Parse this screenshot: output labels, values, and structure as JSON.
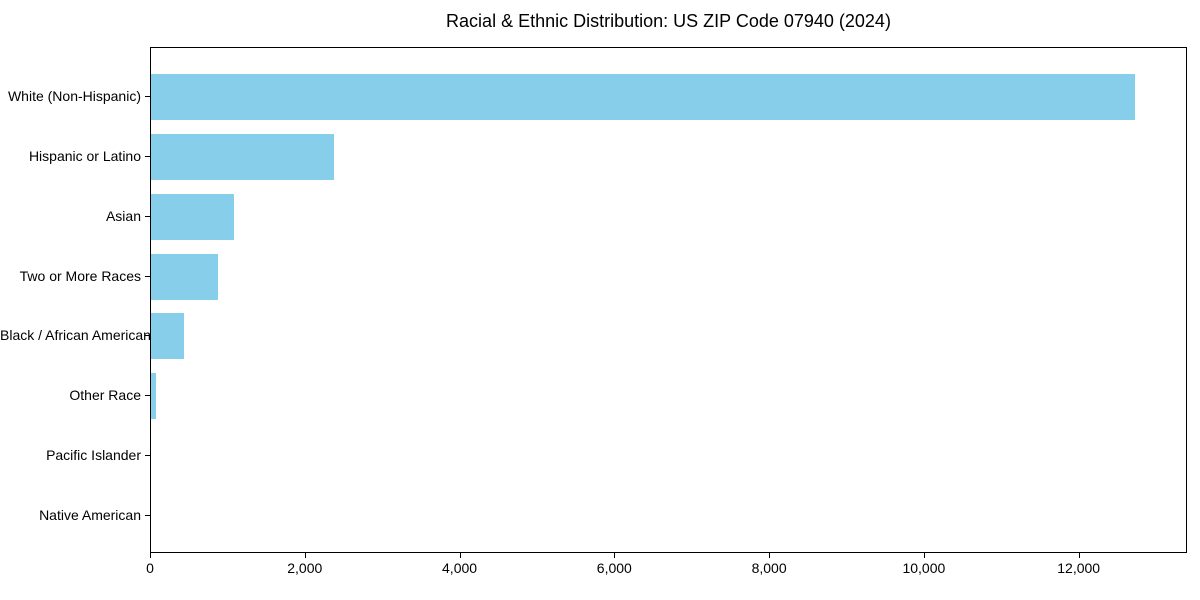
{
  "chart_data": {
    "type": "bar",
    "orientation": "horizontal",
    "title": "Racial & Ethnic Distribution: US ZIP Code 07940 (2024)",
    "categories": [
      "White (Non-Hispanic)",
      "Hispanic or Latino",
      "Asian",
      "Two or More Races",
      "Black / African American",
      "Other Race",
      "Pacific Islander",
      "Native American"
    ],
    "values": [
      12740,
      2370,
      1075,
      870,
      430,
      70,
      0,
      0
    ],
    "xlabel": "",
    "ylabel": "",
    "xlim": [
      0,
      13400
    ],
    "xticks": [
      0,
      2000,
      4000,
      6000,
      8000,
      10000,
      12000
    ],
    "xtick_labels": [
      "0",
      "2,000",
      "4,000",
      "6,000",
      "8,000",
      "10,000",
      "12,000"
    ],
    "bar_color": "#87CEEB",
    "frame_color": "#000000",
    "text_color": "#000000",
    "grid": false,
    "legend": "none",
    "background": "#ffffff"
  }
}
